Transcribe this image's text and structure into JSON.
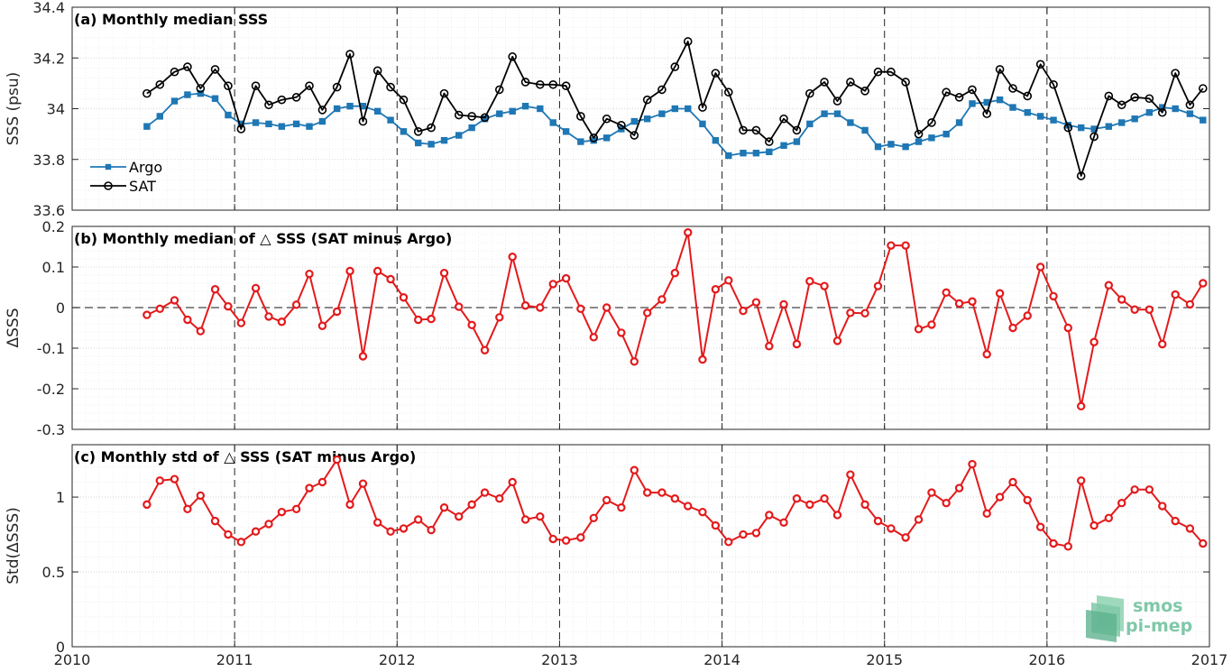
{
  "chart_data": [
    {
      "type": "line",
      "title": "(a) Monthly median SSS",
      "ylabel": "SSS (psu)",
      "xlim": [
        2010,
        2017
      ],
      "ylim": [
        33.6,
        34.4
      ],
      "yticks": [
        33.6,
        33.8,
        34,
        34.2,
        34.4
      ],
      "yticklabels": [
        "33.6",
        "33.8",
        "34",
        "34.2",
        "34.4"
      ],
      "grid": true,
      "legend": "lower-left",
      "x": [
        2010.46,
        2010.54,
        2010.63,
        2010.71,
        2010.79,
        2010.88,
        2010.96,
        2011.04,
        2011.13,
        2011.21,
        2011.29,
        2011.38,
        2011.46,
        2011.54,
        2011.63,
        2011.71,
        2011.79,
        2011.88,
        2011.96,
        2012.04,
        2012.13,
        2012.21,
        2012.29,
        2012.38,
        2012.46,
        2012.54,
        2012.63,
        2012.71,
        2012.79,
        2012.88,
        2012.96,
        2013.04,
        2013.13,
        2013.21,
        2013.29,
        2013.38,
        2013.46,
        2013.54,
        2013.63,
        2013.71,
        2013.79,
        2013.88,
        2013.96,
        2014.04,
        2014.13,
        2014.21,
        2014.29,
        2014.38,
        2014.46,
        2014.54,
        2014.63,
        2014.71,
        2014.79,
        2014.88,
        2014.96,
        2015.04,
        2015.13,
        2015.21,
        2015.29,
        2015.38,
        2015.46,
        2015.54,
        2015.63,
        2015.71,
        2015.79,
        2015.88,
        2015.96,
        2016.04,
        2016.13,
        2016.21,
        2016.29,
        2016.38,
        2016.46,
        2016.54,
        2016.63,
        2016.71,
        2016.79,
        2016.88,
        2016.96
      ],
      "series": [
        {
          "name": "Argo",
          "color": "#1f77b4",
          "marker": "square",
          "values": [
            33.93,
            33.97,
            34.03,
            34.055,
            34.06,
            34.04,
            33.975,
            33.94,
            33.945,
            33.94,
            33.93,
            33.94,
            33.93,
            33.95,
            34.0,
            34.01,
            34.01,
            33.99,
            33.955,
            33.91,
            33.865,
            33.86,
            33.875,
            33.895,
            33.925,
            33.96,
            33.98,
            33.99,
            34.01,
            34.0,
            33.945,
            33.91,
            33.87,
            33.875,
            33.885,
            33.92,
            33.95,
            33.96,
            33.98,
            34.0,
            34.0,
            33.94,
            33.875,
            33.815,
            33.825,
            33.825,
            33.83,
            33.855,
            33.87,
            33.94,
            33.98,
            33.98,
            33.945,
            33.915,
            33.85,
            33.86,
            33.85,
            33.87,
            33.885,
            33.9,
            33.945,
            34.02,
            34.025,
            34.035,
            34.005,
            33.985,
            33.97,
            33.955,
            33.935,
            33.925,
            33.92,
            33.93,
            33.945,
            33.96,
            33.985,
            34.005,
            34.0,
            33.98,
            33.955
          ]
        },
        {
          "name": "SAT",
          "color": "#000000",
          "marker": "circle",
          "values": [
            34.06,
            34.095,
            34.145,
            34.165,
            34.08,
            34.155,
            34.09,
            33.92,
            34.09,
            34.015,
            34.035,
            34.045,
            34.09,
            33.995,
            34.085,
            34.215,
            33.95,
            34.15,
            34.085,
            34.035,
            33.91,
            33.925,
            34.06,
            33.975,
            33.97,
            33.965,
            34.075,
            34.205,
            34.105,
            34.095,
            34.095,
            34.09,
            33.97,
            33.885,
            33.96,
            33.935,
            33.895,
            34.035,
            34.075,
            34.165,
            34.265,
            34.005,
            34.14,
            34.065,
            33.915,
            33.915,
            33.87,
            33.96,
            33.915,
            34.06,
            34.105,
            34.03,
            34.105,
            34.07,
            34.145,
            34.145,
            34.105,
            33.9,
            33.945,
            34.065,
            34.045,
            34.075,
            33.98,
            34.155,
            34.08,
            34.05,
            34.175,
            34.095,
            33.925,
            33.735,
            33.89,
            34.05,
            34.015,
            34.045,
            34.04,
            33.985,
            34.14,
            34.015,
            34.08
          ]
        }
      ]
    },
    {
      "type": "line",
      "title": "(b) Monthly median of △ SSS (SAT minus Argo)",
      "ylabel": "ΔSSS",
      "xlim": [
        2010,
        2017
      ],
      "ylim": [
        -0.3,
        0.2
      ],
      "yticks": [
        -0.3,
        -0.2,
        -0.1,
        0,
        0.1,
        0.2
      ],
      "yticklabels": [
        "-0.3",
        "-0.2",
        "-0.1",
        "0",
        "0.1",
        "0.2"
      ],
      "zero_line": true,
      "grid": true,
      "series": [
        {
          "name": "",
          "color": "#e31a1c",
          "marker": "circle",
          "values": [
            -0.018,
            -0.003,
            0.018,
            -0.03,
            -0.058,
            0.045,
            0.003,
            -0.038,
            0.048,
            -0.022,
            -0.035,
            0.007,
            0.083,
            -0.045,
            -0.01,
            0.09,
            -0.12,
            0.09,
            0.07,
            0.025,
            -0.03,
            -0.028,
            0.085,
            0.002,
            -0.043,
            -0.105,
            -0.024,
            0.125,
            0.005,
            0.0,
            0.058,
            0.072,
            -0.003,
            -0.073,
            0.0,
            -0.062,
            -0.133,
            -0.013,
            0.02,
            0.085,
            0.185,
            -0.128,
            0.045,
            0.067,
            -0.008,
            0.013,
            -0.095,
            0.008,
            -0.09,
            0.065,
            0.053,
            -0.082,
            -0.013,
            -0.014,
            0.053,
            0.153,
            0.153,
            -0.053,
            -0.042,
            0.037,
            0.01,
            0.015,
            -0.115,
            0.035,
            -0.05,
            -0.02,
            0.1,
            0.028,
            -0.05,
            -0.243,
            -0.085,
            0.055,
            0.02,
            -0.005,
            -0.005,
            -0.09,
            0.032,
            0.008,
            0.06
          ]
        }
      ]
    },
    {
      "type": "line",
      "title": "(c) Monthly std of △ SSS (SAT minus Argo)",
      "ylabel": "Std(ΔSSS)",
      "xlim": [
        2010,
        2017
      ],
      "ylim": [
        0,
        1.35
      ],
      "yticks": [
        0,
        0.5,
        1
      ],
      "yticklabels": [
        "0",
        "0.5",
        "1"
      ],
      "xticks": [
        2010,
        2011,
        2012,
        2013,
        2014,
        2015,
        2016,
        2017
      ],
      "xticklabels": [
        "2010",
        "2011",
        "2012",
        "2013",
        "2014",
        "2015",
        "2016",
        "2017"
      ],
      "grid": true,
      "series": [
        {
          "name": "",
          "color": "#e31a1c",
          "marker": "circle",
          "values": [
            0.95,
            1.11,
            1.12,
            0.92,
            1.01,
            0.84,
            0.75,
            0.7,
            0.77,
            0.82,
            0.9,
            0.92,
            1.06,
            1.1,
            1.25,
            0.95,
            1.09,
            0.83,
            0.77,
            0.79,
            0.85,
            0.78,
            0.93,
            0.87,
            0.95,
            1.03,
            0.99,
            1.1,
            0.85,
            0.87,
            0.72,
            0.71,
            0.73,
            0.86,
            0.98,
            0.93,
            1.18,
            1.03,
            1.03,
            0.99,
            0.94,
            0.9,
            0.81,
            0.7,
            0.75,
            0.76,
            0.88,
            0.83,
            0.99,
            0.95,
            0.99,
            0.88,
            1.15,
            0.95,
            0.84,
            0.79,
            0.73,
            0.85,
            1.03,
            0.96,
            1.06,
            1.22,
            0.89,
            1.0,
            1.1,
            0.98,
            0.8,
            0.69,
            0.67,
            1.11,
            0.81,
            0.86,
            0.96,
            1.05,
            1.05,
            0.94,
            0.84,
            0.79,
            0.69
          ]
        }
      ]
    }
  ],
  "logo": {
    "line1": "smos",
    "line2": "pi-mep",
    "color": "#7fc8a9"
  }
}
